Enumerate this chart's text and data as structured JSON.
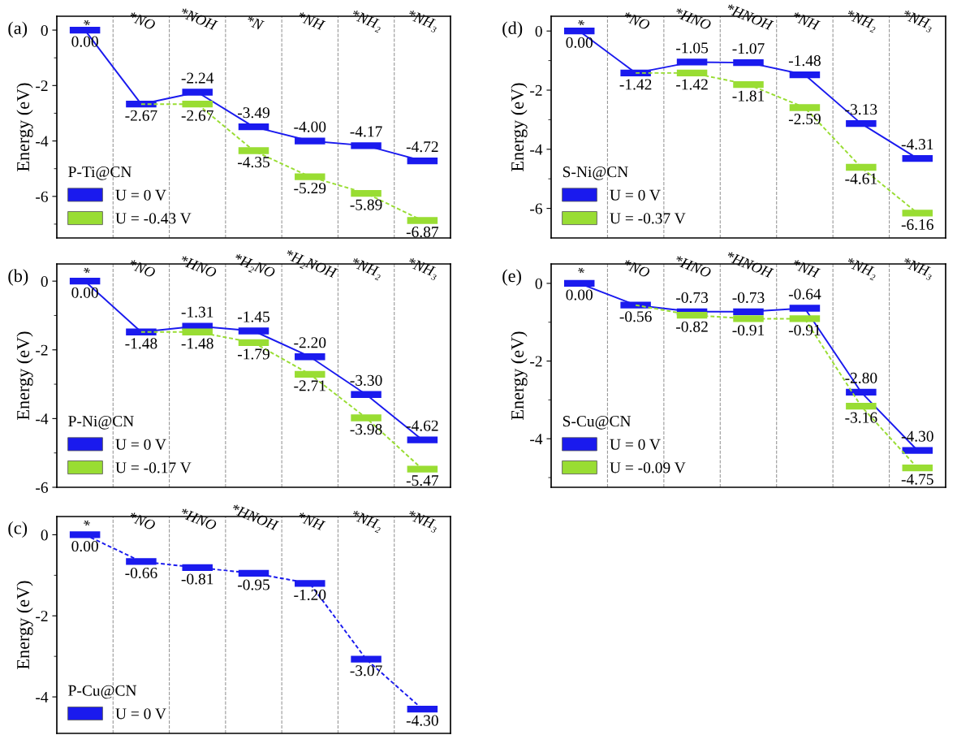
{
  "chart_data": [
    {
      "type": "line",
      "title": "(a)",
      "ylabel": "Energy (eV)",
      "legend_title": "P-Ti@CN",
      "legend": "bottom left",
      "grid": "x",
      "categories": [
        "*",
        "*NO",
        "*NOH",
        "*N",
        "*NH",
        "*NH₂",
        "*NH₃"
      ],
      "ylim": [
        -7.5,
        0.5
      ],
      "yticks": [
        0,
        {
          "value": -1,
          "label": null
        },
        -2,
        {
          "value": -3,
          "label": null
        },
        -4,
        {
          "value": -5,
          "label": null
        },
        -6,
        {
          "value": -7,
          "label": null
        }
      ],
      "series": [
        {
          "name": "U = -0.43 V",
          "color": "#99dd33",
          "line_style": "dashed",
          "values": [
            null,
            -2.67,
            -2.67,
            -4.35,
            -5.29,
            -5.89,
            -6.87
          ],
          "value_labels": [
            null,
            null,
            "-2.67",
            "-4.35",
            "-5.29",
            "-5.89",
            "-6.87"
          ]
        },
        {
          "name": "U = 0 V",
          "color": "#1a1aee",
          "line_style": "solid",
          "values": [
            0.0,
            -2.67,
            -2.24,
            -3.49,
            -4.0,
            -4.17,
            -4.72
          ],
          "value_labels": [
            "0.00",
            "-2.67",
            "-2.24",
            "-3.49",
            "-4.00",
            "-4.17",
            "-4.72"
          ]
        }
      ]
    },
    {
      "type": "line",
      "title": "(b)",
      "ylabel": "Energy (eV)",
      "legend_title": "P-Ni@CN",
      "legend": "bottom left",
      "grid": "x",
      "categories": [
        "*",
        "*NO",
        "*HNO",
        "*H₂NO",
        "*H₂NOH",
        "*NH₂",
        "*NH₃"
      ],
      "ylim": [
        -6,
        0.5
      ],
      "yticks": [
        0,
        {
          "value": -1,
          "label": null
        },
        -2,
        {
          "value": -3,
          "label": null
        },
        -4,
        {
          "value": -5,
          "label": null
        },
        -6
      ],
      "series": [
        {
          "name": "U = -0.17 V",
          "color": "#99dd33",
          "line_style": "dashed",
          "values": [
            null,
            -1.48,
            -1.48,
            -1.79,
            -2.71,
            -3.98,
            -5.47
          ],
          "value_labels": [
            null,
            null,
            "-1.48",
            "-1.79",
            "-2.71",
            "-3.98",
            "-5.47"
          ]
        },
        {
          "name": "U = 0 V",
          "color": "#1a1aee",
          "line_style": "solid",
          "values": [
            0.0,
            -1.48,
            -1.31,
            -1.45,
            -2.2,
            -3.3,
            -4.62
          ],
          "value_labels": [
            "0.00",
            "-1.48",
            "-1.31",
            "-1.45",
            "-2.20",
            "-3.30",
            "-4.62"
          ]
        }
      ]
    },
    {
      "type": "line",
      "title": "(c)",
      "ylabel": "Energy (eV)",
      "legend_title": "P-Cu@CN",
      "legend": "bottom left",
      "grid": "x",
      "categories": [
        "*",
        "*NO",
        "*HNO",
        "*HNOH",
        "*NH",
        "*NH₂",
        "*NH₃"
      ],
      "ylim": [
        -4.9,
        0.45
      ],
      "yticks": [
        0,
        {
          "value": -1,
          "label": null
        },
        -2,
        {
          "value": -3,
          "label": null
        },
        -4
      ],
      "series": [
        {
          "name": "U = 0 V",
          "color": "#1a1aee",
          "line_style": "dashed",
          "values": [
            0.0,
            -0.66,
            -0.81,
            -0.95,
            -1.2,
            -3.07,
            -4.3
          ],
          "value_labels": [
            "0.00",
            "-0.66",
            "-0.81",
            "-0.95",
            "-1.20",
            "-3.07",
            "-4.30"
          ]
        }
      ]
    },
    {
      "type": "line",
      "title": "(d)",
      "ylabel": "Energy (eV)",
      "legend_title": "S-Ni@CN",
      "legend": "bottom left",
      "grid": "x",
      "categories": [
        "*",
        "*NO",
        "*HNO",
        "*HNOH",
        "*NH",
        "*NH₂",
        "*NH₃"
      ],
      "ylim": [
        -7,
        0.5
      ],
      "yticks": [
        0,
        {
          "value": -1,
          "label": null
        },
        -2,
        {
          "value": -3,
          "label": null
        },
        -4,
        {
          "value": -5,
          "label": null
        },
        -6
      ],
      "series": [
        {
          "name": "U = -0.37 V",
          "color": "#99dd33",
          "line_style": "dashed",
          "values": [
            null,
            -1.42,
            -1.42,
            -1.81,
            -2.59,
            -4.61,
            -6.16
          ],
          "value_labels": [
            null,
            null,
            "-1.42",
            "-1.81",
            "-2.59",
            "-4.61",
            "-6.16"
          ]
        },
        {
          "name": "U = 0 V",
          "color": "#1a1aee",
          "line_style": "solid",
          "values": [
            0.0,
            -1.42,
            -1.05,
            -1.07,
            -1.48,
            -3.13,
            -4.31
          ],
          "value_labels": [
            "0.00",
            "-1.42",
            "-1.05",
            "-1.07",
            "-1.48",
            "-3.13",
            "-4.31"
          ]
        }
      ]
    },
    {
      "type": "line",
      "title": "(e)",
      "ylabel": "Energy (eV)",
      "legend_title": "S-Cu@CN",
      "legend": "bottom left",
      "grid": "x",
      "categories": [
        "*",
        "*NO",
        "*HNO",
        "*HNOH",
        "*NH",
        "*NH₂",
        "*NH₃"
      ],
      "ylim": [
        -5.25,
        0.5
      ],
      "yticks": [
        0,
        {
          "value": -1,
          "label": null
        },
        -2,
        {
          "value": -3,
          "label": null
        },
        -4,
        {
          "value": -5,
          "label": null
        }
      ],
      "series": [
        {
          "name": "U = -0.09 V",
          "color": "#99dd33",
          "line_style": "dashed",
          "values": [
            null,
            -0.56,
            -0.82,
            -0.91,
            -0.91,
            -3.16,
            -4.75
          ],
          "value_labels": [
            null,
            null,
            "-0.82",
            "-0.91",
            "-0.91",
            "-3.16",
            "-4.75"
          ]
        },
        {
          "name": "U = 0 V",
          "color": "#1a1aee",
          "line_style": "solid",
          "values": [
            0.0,
            -0.56,
            -0.73,
            -0.73,
            -0.64,
            -2.8,
            -4.3
          ],
          "value_labels": [
            "0.00",
            "-0.56",
            "-0.73",
            "-0.73",
            "-0.64",
            "-2.80",
            "-4.30"
          ]
        }
      ]
    }
  ]
}
